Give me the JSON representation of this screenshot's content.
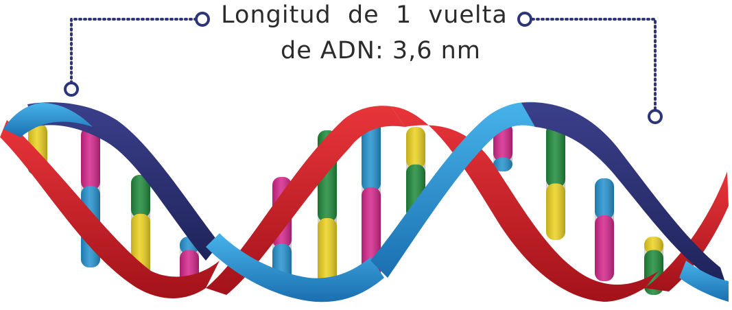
{
  "label": {
    "line1": "Longitud  de  1  vuelta",
    "line2": "de ADN: 3,6 nm"
  },
  "colors": {
    "strand_red": "#d81f26",
    "strand_red_shade": "#a3121a",
    "strand_blue": "#2a9ad8",
    "strand_navy": "#2a2f73",
    "marker": "#2d3579",
    "base_yellow": "#ecd21f",
    "base_green": "#1e8a3a",
    "base_pink": "#d4258a",
    "base_blue": "#2492cf"
  },
  "icons": {
    "marker_dot": "circle-marker-icon"
  }
}
